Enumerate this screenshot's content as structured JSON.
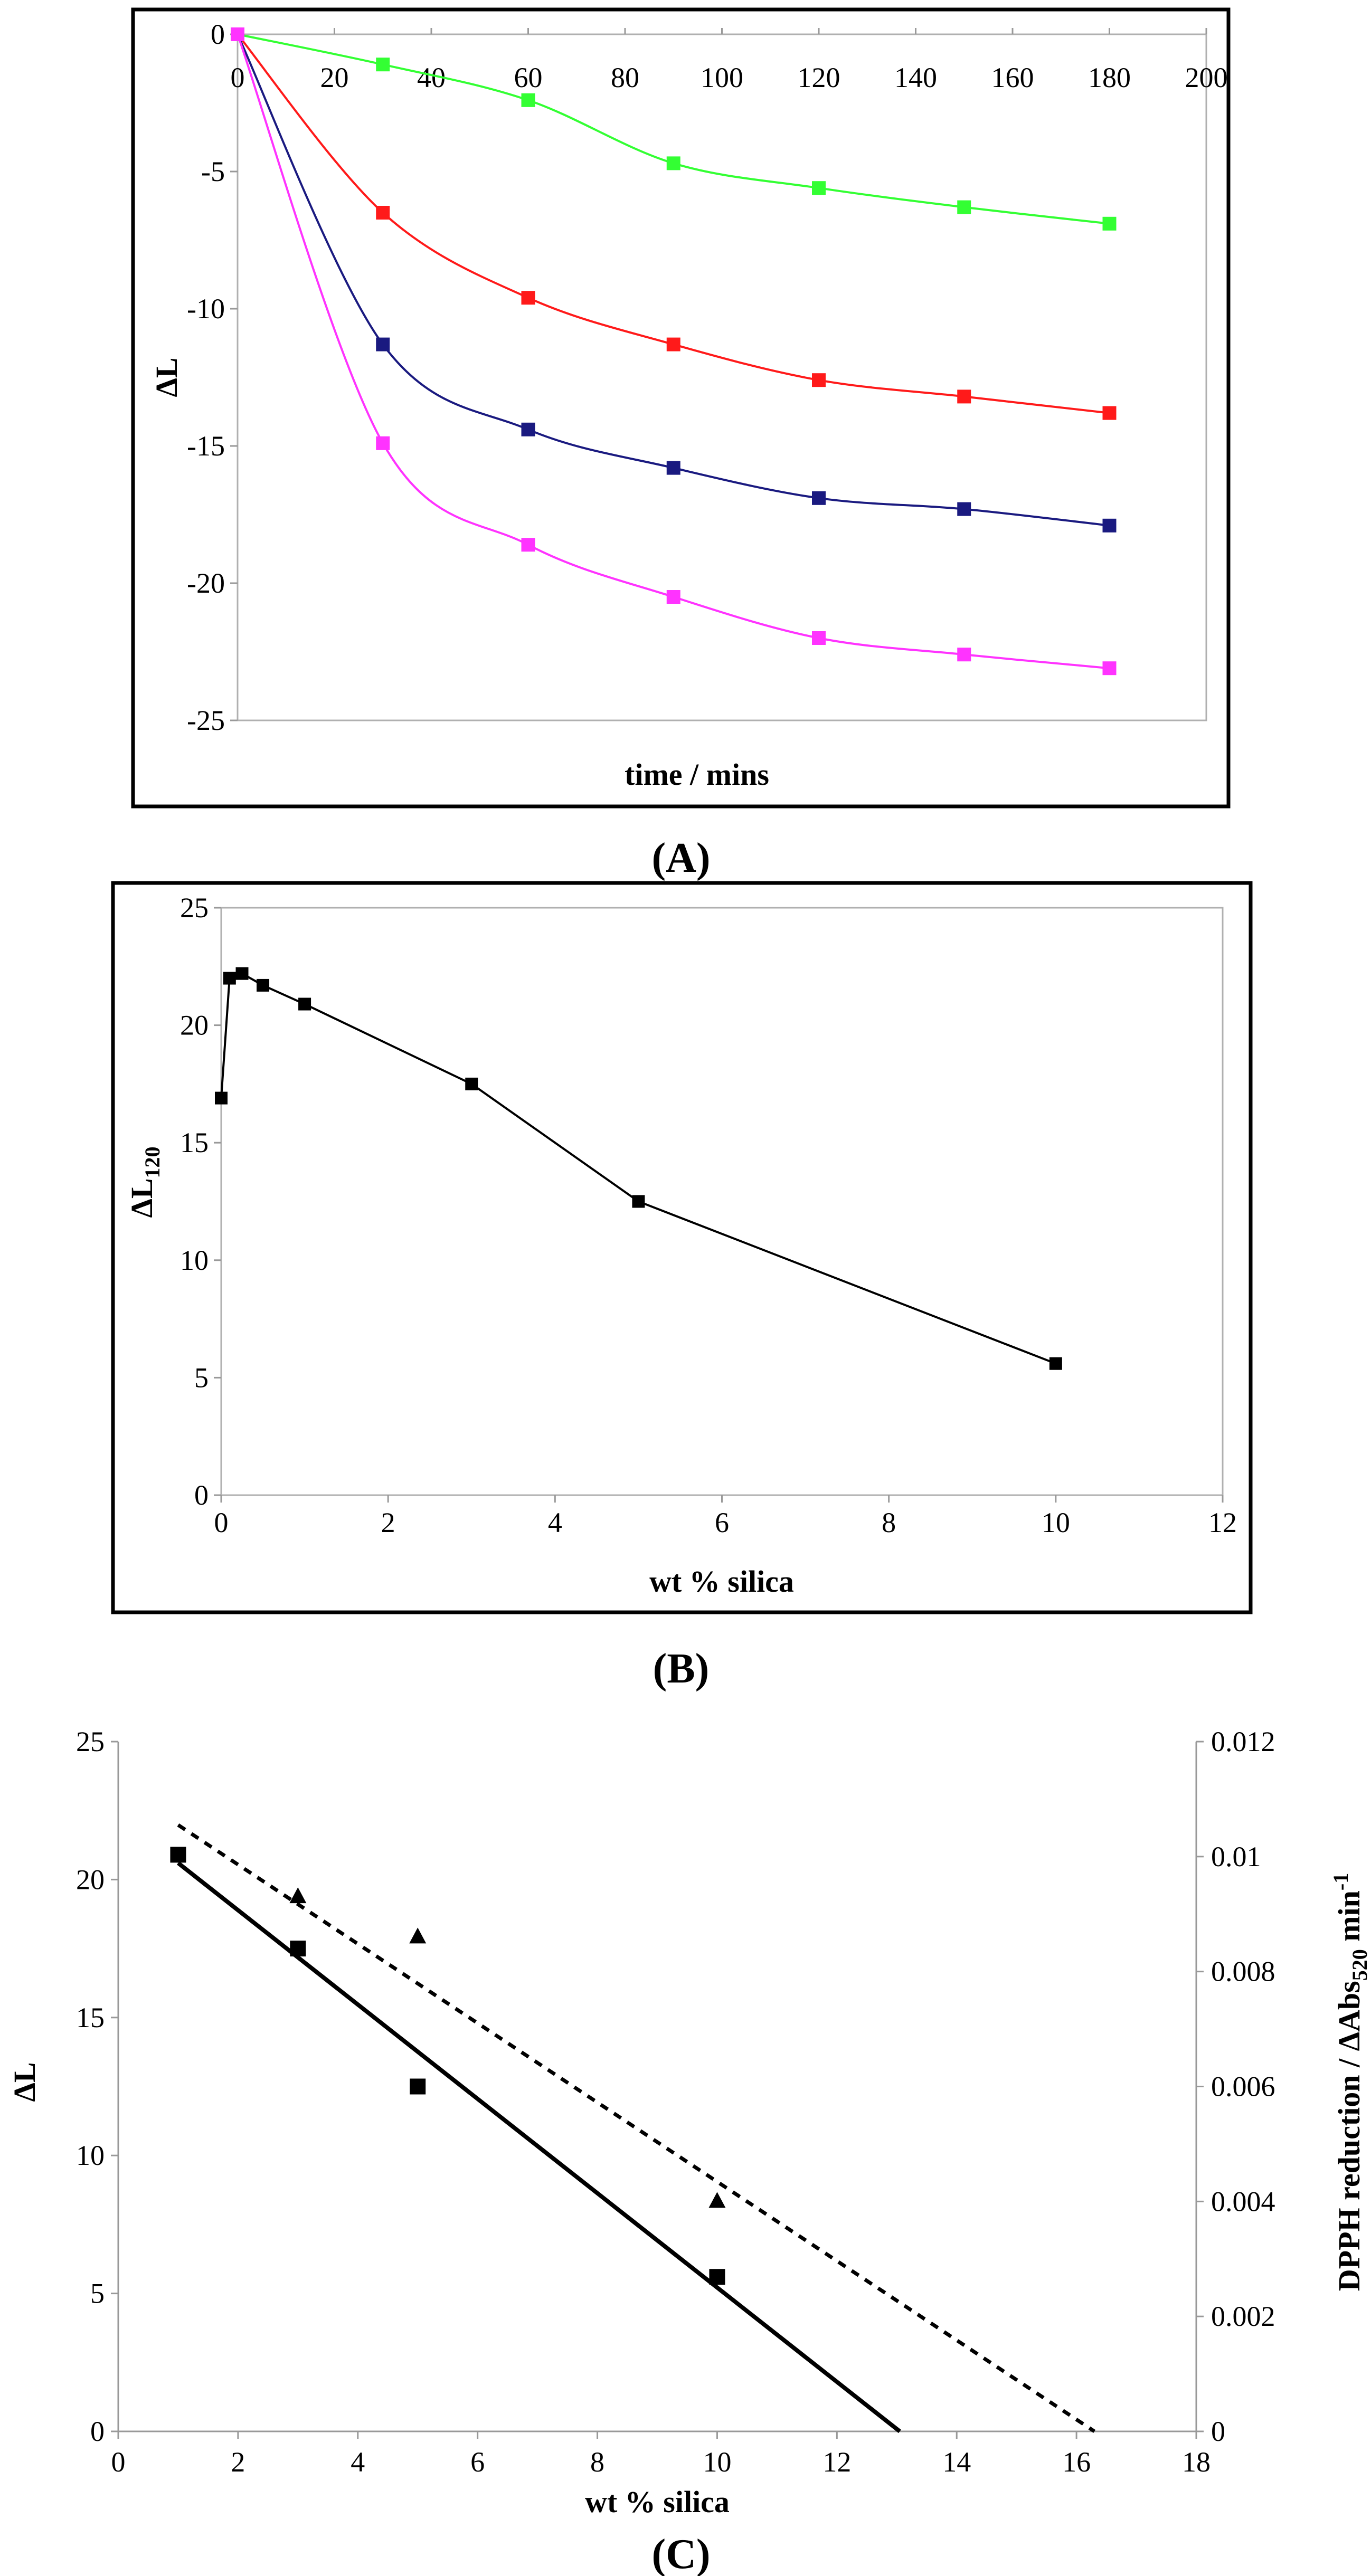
{
  "chart_data": [
    {
      "type": "line",
      "panel_label": "(A)",
      "xlabel": "time / mins",
      "ylabel": "ΔL",
      "xlim": [
        0,
        200
      ],
      "ylim": [
        -25,
        0
      ],
      "xticks": [
        0,
        20,
        40,
        60,
        80,
        100,
        120,
        140,
        160,
        180,
        200
      ],
      "yticks": [
        0,
        -5,
        -10,
        -15,
        -20,
        -25
      ],
      "x_axis_position": "top",
      "grid": false,
      "series": [
        {
          "color": "#33ff33",
          "x": [
            0,
            30,
            60,
            90,
            120,
            150,
            180
          ],
          "y": [
            0,
            -1.1,
            -2.4,
            -4.7,
            -5.6,
            -6.3,
            -6.9
          ]
        },
        {
          "color": "#ff1a1a",
          "x": [
            0,
            30,
            60,
            90,
            120,
            150,
            180
          ],
          "y": [
            0,
            -6.5,
            -9.6,
            -11.3,
            -12.6,
            -13.2,
            -13.8
          ]
        },
        {
          "color": "#1a1a80",
          "x": [
            0,
            30,
            60,
            90,
            120,
            150,
            180
          ],
          "y": [
            0,
            -11.3,
            -14.4,
            -15.8,
            -16.9,
            -17.3,
            -17.9
          ]
        },
        {
          "color": "#ff33ff",
          "x": [
            0,
            30,
            60,
            90,
            120,
            150,
            180
          ],
          "y": [
            0,
            -14.9,
            -18.6,
            -20.5,
            -22.0,
            -22.6,
            -23.1
          ]
        }
      ]
    },
    {
      "type": "line",
      "panel_label": "(B)",
      "xlabel": "wt % silica",
      "ylabel": "ΔL",
      "ylabel_sub": "120",
      "xlim": [
        0,
        12
      ],
      "ylim": [
        0,
        25
      ],
      "xticks": [
        0,
        2,
        4,
        6,
        8,
        10,
        12
      ],
      "yticks": [
        0,
        5,
        10,
        15,
        20,
        25
      ],
      "grid": false,
      "series": [
        {
          "color": "#000000",
          "x": [
            0,
            0.1,
            0.25,
            0.5,
            1,
            3,
            5,
            10
          ],
          "y": [
            16.9,
            22.0,
            22.2,
            21.7,
            20.9,
            17.5,
            12.5,
            5.6
          ]
        }
      ]
    },
    {
      "type": "scatter",
      "panel_label": "(C)",
      "xlabel": "wt % silica",
      "ylabel": "ΔL",
      "y2label": "DPPH reduction / ΔAbs",
      "y2label_sub": "520",
      "y2label_unit": " min",
      "y2label_sup": "-1",
      "xlim": [
        0,
        18
      ],
      "ylim": [
        0,
        25
      ],
      "y2lim": [
        0,
        0.012
      ],
      "xticks": [
        0,
        2,
        4,
        6,
        8,
        10,
        12,
        14,
        16,
        18
      ],
      "yticks": [
        0,
        5,
        10,
        15,
        20,
        25
      ],
      "y2ticks": [
        "0",
        "0.002",
        "0.004",
        "0.006",
        "0.008",
        "0.01",
        "0.012"
      ],
      "y2tick_values": [
        0,
        0.002,
        0.004,
        0.006,
        0.008,
        0.01,
        0.012
      ],
      "grid": false,
      "series": [
        {
          "marker": "square",
          "axis": "left",
          "x": [
            1,
            3,
            5,
            10
          ],
          "y": [
            20.9,
            17.5,
            12.5,
            5.6
          ]
        },
        {
          "marker": "triangle",
          "axis": "right",
          "x": [
            3,
            5,
            10
          ],
          "y": [
            0.0093,
            0.0086,
            0.004
          ]
        }
      ],
      "fit_lines": [
        {
          "style": "solid",
          "axis": "left",
          "x": [
            1,
            13.05
          ],
          "y": [
            20.6,
            0
          ]
        },
        {
          "style": "dotted",
          "axis": "right",
          "x": [
            1,
            16.3
          ],
          "y": [
            0.01055,
            0
          ]
        }
      ]
    }
  ]
}
